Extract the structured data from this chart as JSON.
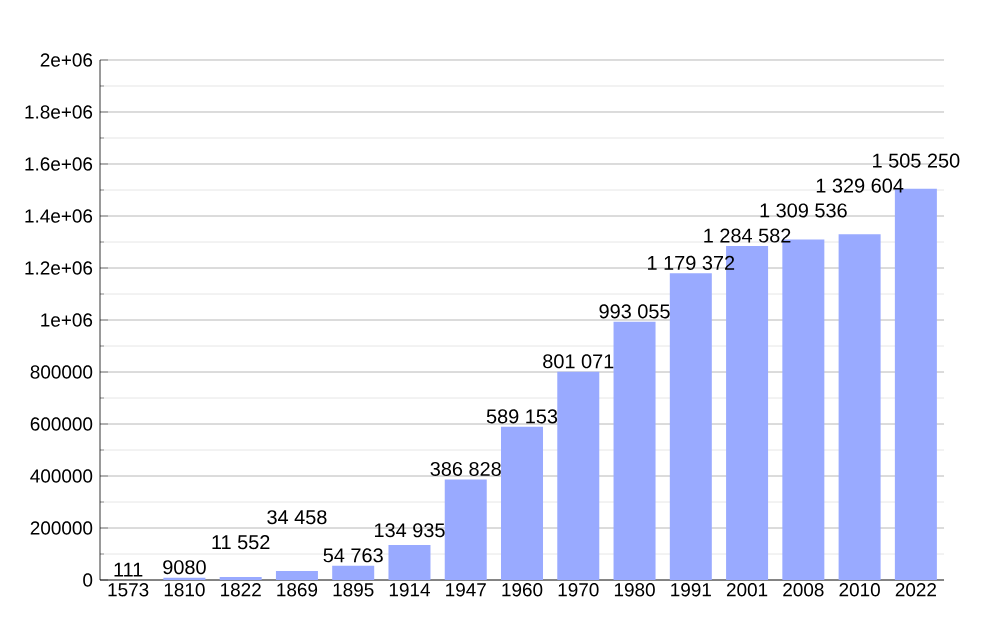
{
  "chart_data": {
    "type": "bar",
    "categories": [
      "1573",
      "1810",
      "1822",
      "1869",
      "1895",
      "1914",
      "1947",
      "1960",
      "1970",
      "1980",
      "1991",
      "2001",
      "2008",
      "2010",
      "2022"
    ],
    "values": [
      111,
      9080,
      11552,
      34458,
      54763,
      134935,
      386828,
      589153,
      801071,
      993055,
      1179372,
      1284582,
      1309536,
      1329604,
      1505250
    ],
    "value_labels": [
      "111",
      "9080",
      "11 552",
      "34 458",
      "54 763",
      "134 935",
      "386 828",
      "589 153",
      "801 071",
      "993 055",
      "1 179 372",
      "1 284 582",
      "1 309 536",
      "1 329 604",
      "1 505 250"
    ],
    "color": "#99aaff",
    "ylim": [
      0,
      2000000
    ],
    "yticks": [
      0,
      200000,
      400000,
      600000,
      800000,
      {
        "value": 1000000,
        "label": "1e+06"
      },
      {
        "value": 1200000,
        "label": "1.2e+06"
      },
      {
        "value": 1400000,
        "label": "1.4e+06"
      },
      {
        "value": 1600000,
        "label": "1.6e+06"
      },
      {
        "value": 1800000,
        "label": "1.8e+06"
      },
      {
        "value": 2000000,
        "label": "2e+06"
      }
    ],
    "grid": "y"
  }
}
